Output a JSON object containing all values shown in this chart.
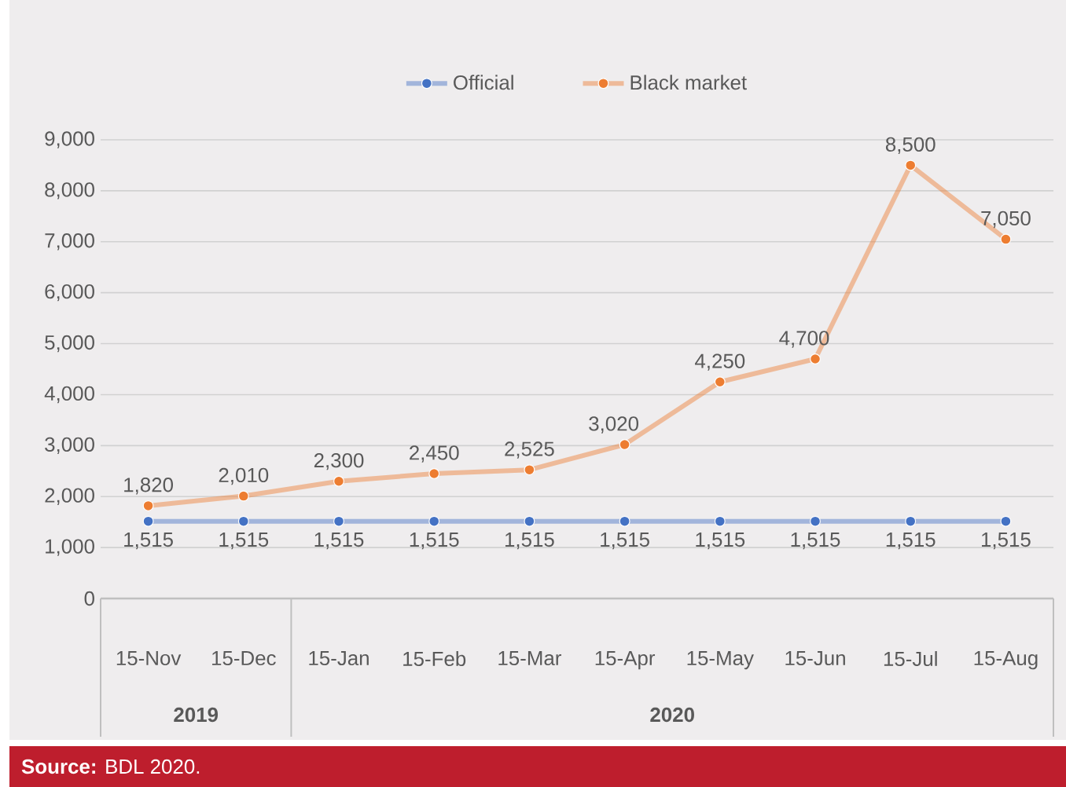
{
  "chart_data": {
    "type": "line",
    "categories": [
      "15-Nov",
      "15-Dec",
      "15-Jan",
      "15-Feb",
      "15-Mar",
      "15-Apr",
      "15-May",
      "15-Jun",
      "15-Jul",
      "15-Aug"
    ],
    "series": [
      {
        "name": "Official",
        "color": "#4472c4",
        "values": [
          1515,
          1515,
          1515,
          1515,
          1515,
          1515,
          1515,
          1515,
          1515,
          1515
        ],
        "value_labels": [
          "1,515",
          "1,515",
          "1,515",
          "1,515",
          "1,515",
          "1,515",
          "1,515",
          "1,515",
          "1,515",
          "1,515"
        ]
      },
      {
        "name": "Black market",
        "color": "#ed7d31",
        "values": [
          1820,
          2010,
          2300,
          2450,
          2525,
          3020,
          4250,
          4700,
          8500,
          7050
        ],
        "value_labels": [
          "1,820",
          "2,010",
          "2,300",
          "2,450",
          "2,525",
          "3,020",
          "4,250",
          "4,700",
          "8,500",
          "7,050"
        ]
      }
    ],
    "ylim": [
      0,
      9000
    ],
    "yticks": [
      0,
      {
        "value": 1000,
        "label": "1,000"
      },
      {
        "value": 2000,
        "label": "2,000"
      },
      {
        "value": 3000,
        "label": "3,000"
      },
      {
        "value": 4000,
        "label": "4,000"
      },
      {
        "value": 5000,
        "label": "5,000"
      },
      {
        "value": 6000,
        "label": "6,000"
      },
      {
        "value": 7000,
        "label": "7,000"
      },
      {
        "value": 8000,
        "label": "8,000"
      },
      {
        "value": 9000,
        "label": "9,000"
      }
    ],
    "grid": "y",
    "legend": "top",
    "marker": "circle",
    "line_style": "solid",
    "annotations": [
      "2019",
      "2020",
      "**Source:** BDL 2020."
    ]
  }
}
